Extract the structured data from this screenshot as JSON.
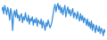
{
  "chart_data": {
    "type": "line",
    "color": "#3b8fd9",
    "tick_labels": false,
    "grid": false,
    "ylim": [
      25,
      95
    ],
    "values": [
      78,
      85,
      72,
      88,
      80,
      70,
      84,
      76,
      60,
      82,
      74,
      40,
      70,
      78,
      66,
      80,
      64,
      70,
      58,
      68,
      72,
      55,
      66,
      60,
      74,
      62,
      57,
      69,
      52,
      63,
      58,
      66,
      50,
      61,
      55,
      64,
      48,
      60,
      56,
      52,
      62,
      45,
      58,
      50,
      40,
      55,
      48,
      60,
      52,
      45,
      50,
      58,
      70,
      82,
      90,
      76,
      86,
      92,
      80,
      88,
      74,
      84,
      70,
      80,
      88,
      66,
      78,
      85,
      72,
      80,
      68,
      76,
      82,
      64,
      74,
      70,
      62,
      76,
      66,
      58,
      72,
      60,
      68,
      55,
      64,
      60,
      50,
      62,
      48,
      56,
      44,
      58,
      40,
      52,
      46,
      36,
      50,
      42,
      38,
      48,
      34,
      44,
      40,
      30,
      42,
      36
    ]
  }
}
